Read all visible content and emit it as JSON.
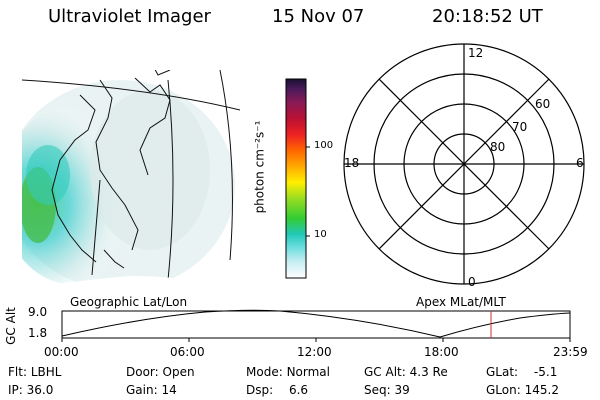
{
  "header": {
    "instrument": "Ultraviolet Imager",
    "date": "15 Nov 07",
    "time": "20:18:52 UT"
  },
  "left_panel": {
    "label": "Geographic Lat/Lon",
    "icon": "globe-map-icon"
  },
  "right_panel": {
    "label": "Apex MLat/MLT",
    "mlt_labels": {
      "top": "12",
      "left": "18",
      "right": "6",
      "bottom": "0"
    },
    "lat_labels": [
      "60",
      "70",
      "80"
    ]
  },
  "colorbar": {
    "unit_label": "photon cm⁻²s⁻¹",
    "ticks": [
      "100",
      "10"
    ]
  },
  "altitude_plot": {
    "ylabel": "GC Alt",
    "yticks": [
      "9.0",
      "1.8"
    ],
    "xticks": [
      "00:00",
      "06:00",
      "12:00",
      "18:00",
      "23:59"
    ],
    "marker_time": "20:18",
    "marker_color": "#cc3333"
  },
  "status": {
    "flt": {
      "label": "Flt:",
      "value": "LBHL"
    },
    "ip": {
      "label": "IP:",
      "value": "36.0"
    },
    "door": {
      "label": "Door:",
      "value": "Open"
    },
    "gain": {
      "label": "Gain:",
      "value": "14"
    },
    "mode": {
      "label": "Mode:",
      "value": "Normal"
    },
    "dsp": {
      "label": "Dsp:",
      "value": "6.6"
    },
    "gcalt": {
      "label": "GC Alt:",
      "value": "4.3 Re"
    },
    "seq": {
      "label": "Seq:",
      "value": "39"
    },
    "glat": {
      "label": "GLat:",
      "value": "-5.1"
    },
    "glon": {
      "label": "GLon:",
      "value": "145.2"
    }
  }
}
